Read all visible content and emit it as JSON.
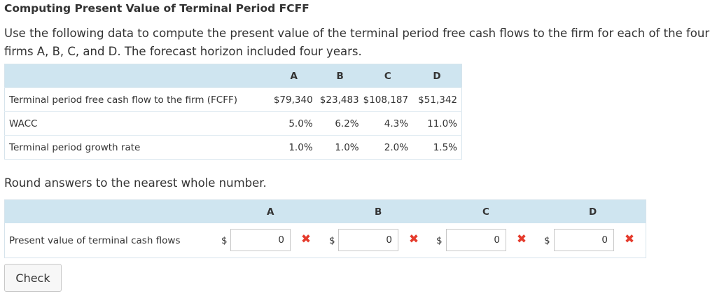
{
  "title": "Computing Present Value of Terminal Period FCFF",
  "intro": "Use the following data to compute the present value of the terminal period free cash flows to the firm for each of the four firms A, B, C, and D. The forecast horizon included four years.",
  "data_table": {
    "columns": [
      "A",
      "B",
      "C",
      "D"
    ],
    "rows": [
      {
        "label": "Terminal period free cash flow to the firm (FCFF)",
        "values": [
          "$79,340",
          "$23,483",
          "$108,187",
          "$51,342"
        ]
      },
      {
        "label": "WACC",
        "values": [
          "5.0%",
          "6.2%",
          "4.3%",
          "11.0%"
        ]
      },
      {
        "label": "Terminal period growth rate",
        "values": [
          "1.0%",
          "1.0%",
          "2.0%",
          "1.5%"
        ]
      }
    ]
  },
  "round_note": "Round answers to the nearest whole number.",
  "answer_table": {
    "columns": [
      "A",
      "B",
      "C",
      "D"
    ],
    "row_label": "Present value of terminal cash flows",
    "currency_symbol": "$",
    "answers": [
      "0",
      "0",
      "0",
      "0"
    ],
    "status_icon": "x-mark-icon",
    "status_color": "#e53b2c"
  },
  "check_label": "Check"
}
